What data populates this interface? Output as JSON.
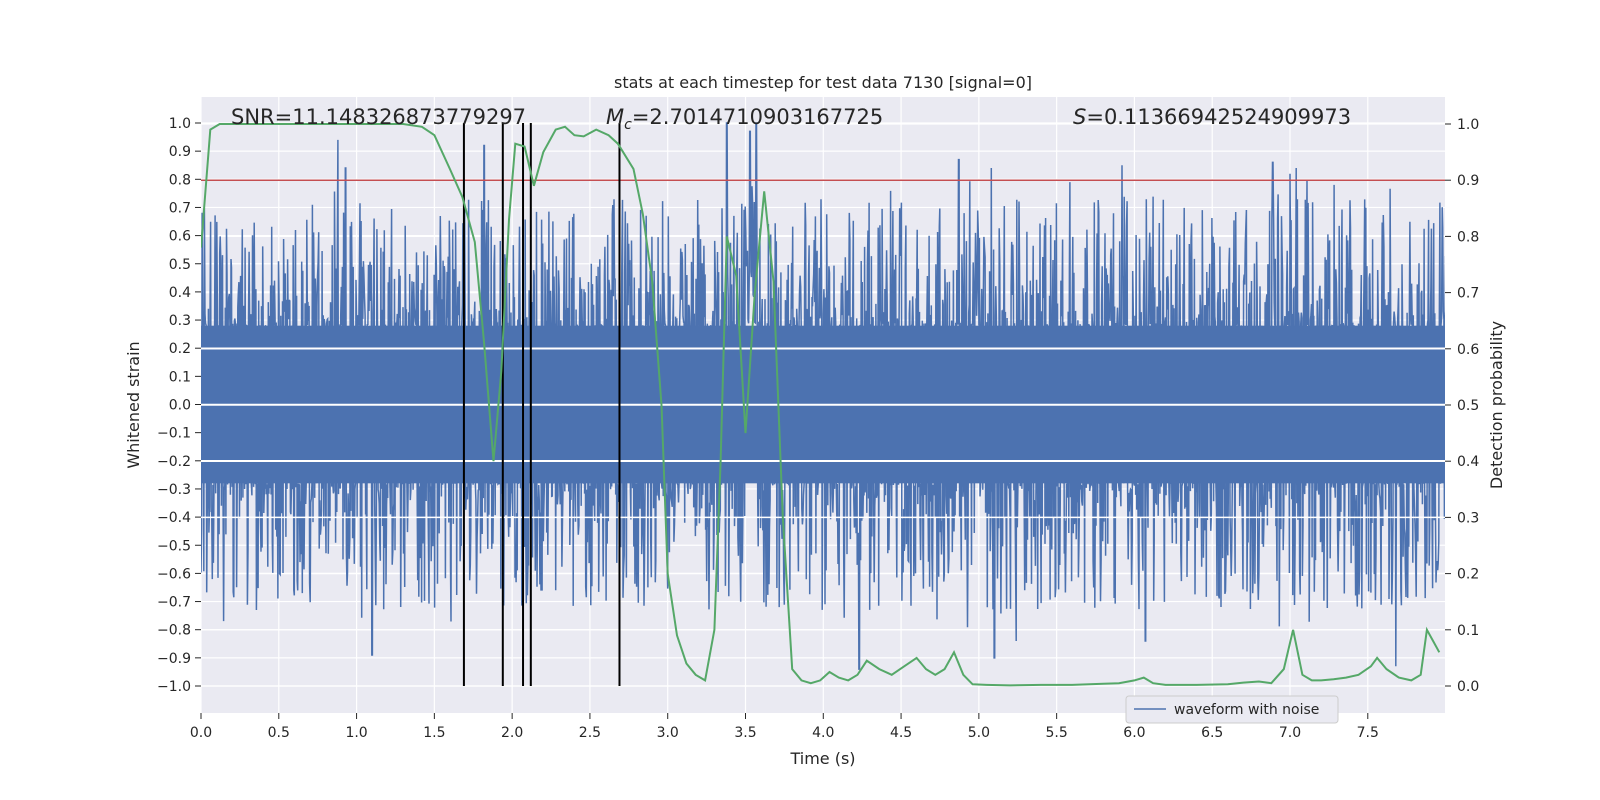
{
  "chart_data": {
    "type": "line",
    "title": "stats at each timestep for test data 7130 [signal=0]",
    "xlabel": "Time (s)",
    "ylabel": "Whitened strain",
    "y2label": "Detection probability",
    "xlim": [
      0,
      8
    ],
    "ylim": [
      -1.05,
      1.05
    ],
    "y2lim": [
      -0.045,
      1.045
    ],
    "x_ticks": [
      "0.0",
      "0.5",
      "1.0",
      "1.5",
      "2.0",
      "2.5",
      "3.0",
      "3.5",
      "4.0",
      "4.5",
      "5.0",
      "5.5",
      "6.0",
      "6.5",
      "7.0",
      "7.5"
    ],
    "y_ticks": [
      "1.0",
      "0.9",
      "0.8",
      "0.7",
      "0.6",
      "0.5",
      "0.4",
      "0.3",
      "0.2",
      "0.1",
      "0.0",
      "−0.1",
      "−0.2",
      "−0.3",
      "−0.4",
      "−0.5",
      "−0.6",
      "−0.7",
      "−0.8",
      "−0.9",
      "−1.0"
    ],
    "y2_ticks": [
      "1.0",
      "0.9",
      "0.8",
      "0.7",
      "0.6",
      "0.5",
      "0.4",
      "0.3",
      "0.2",
      "0.1",
      "0.0"
    ],
    "stats": {
      "snr_text": "SNR=11.148326873779297",
      "mc_symbol": "M",
      "mc_subscript": "c",
      "mc_value": "=2.7014710903167725",
      "s_symbol": "S",
      "s_value": "=0.11366942524909973"
    },
    "threshold": {
      "y2_value": 0.9,
      "color": "#c44e52"
    },
    "vertical_markers": [
      1.69,
      1.94,
      2.07,
      2.12,
      2.69
    ],
    "series": [
      {
        "name": "waveform with noise",
        "color": "#4c72b0",
        "kind": "dense noise, typical envelope ±0.45, peaks to ±1.0",
        "peaks_up": [
          [
            0.88,
            0.94
          ],
          [
            0.93,
            0.84
          ],
          [
            1.82,
            0.92
          ],
          [
            3.38,
            1.0
          ],
          [
            3.53,
            0.97
          ],
          [
            3.57,
            1.0
          ],
          [
            4.87,
            0.87
          ],
          [
            5.08,
            0.84
          ],
          [
            5.92,
            0.85
          ],
          [
            6.07,
            0.86
          ],
          [
            6.89,
            0.86
          ],
          [
            7.0,
            0.82
          ],
          [
            7.04,
            0.84
          ]
        ],
        "peaks_down": [
          [
            1.1,
            -0.89
          ],
          [
            4.23,
            -0.94
          ],
          [
            5.1,
            -0.9
          ],
          [
            5.24,
            -0.84
          ],
          [
            6.07,
            -0.84
          ],
          [
            7.68,
            -0.93
          ]
        ]
      },
      {
        "name": "detection probability",
        "color": "#55a868",
        "axis": "y2",
        "points": [
          [
            0.0,
            0.78
          ],
          [
            0.06,
            0.99
          ],
          [
            0.12,
            1.0
          ],
          [
            0.5,
            1.0
          ],
          [
            1.0,
            1.0
          ],
          [
            1.3,
            1.0
          ],
          [
            1.42,
            0.995
          ],
          [
            1.5,
            0.98
          ],
          [
            1.6,
            0.92
          ],
          [
            1.68,
            0.87
          ],
          [
            1.76,
            0.79
          ],
          [
            1.82,
            0.61
          ],
          [
            1.88,
            0.4
          ],
          [
            1.93,
            0.56
          ],
          [
            1.98,
            0.83
          ],
          [
            2.02,
            0.965
          ],
          [
            2.08,
            0.96
          ],
          [
            2.14,
            0.89
          ],
          [
            2.2,
            0.95
          ],
          [
            2.28,
            0.99
          ],
          [
            2.34,
            0.995
          ],
          [
            2.4,
            0.98
          ],
          [
            2.46,
            0.978
          ],
          [
            2.54,
            0.99
          ],
          [
            2.62,
            0.98
          ],
          [
            2.68,
            0.965
          ],
          [
            2.78,
            0.92
          ],
          [
            2.84,
            0.84
          ],
          [
            2.9,
            0.72
          ],
          [
            2.96,
            0.5
          ],
          [
            3.0,
            0.2
          ],
          [
            3.06,
            0.09
          ],
          [
            3.12,
            0.04
          ],
          [
            3.18,
            0.02
          ],
          [
            3.24,
            0.01
          ],
          [
            3.3,
            0.1
          ],
          [
            3.34,
            0.4
          ],
          [
            3.38,
            0.8
          ],
          [
            3.44,
            0.73
          ],
          [
            3.5,
            0.45
          ],
          [
            3.56,
            0.7
          ],
          [
            3.62,
            0.88
          ],
          [
            3.68,
            0.72
          ],
          [
            3.74,
            0.3
          ],
          [
            3.8,
            0.03
          ],
          [
            3.86,
            0.01
          ],
          [
            3.92,
            0.005
          ],
          [
            3.98,
            0.01
          ],
          [
            4.04,
            0.025
          ],
          [
            4.1,
            0.015
          ],
          [
            4.16,
            0.01
          ],
          [
            4.22,
            0.02
          ],
          [
            4.28,
            0.045
          ],
          [
            4.36,
            0.03
          ],
          [
            4.44,
            0.02
          ],
          [
            4.52,
            0.035
          ],
          [
            4.6,
            0.05
          ],
          [
            4.66,
            0.03
          ],
          [
            4.72,
            0.02
          ],
          [
            4.78,
            0.03
          ],
          [
            4.84,
            0.06
          ],
          [
            4.9,
            0.02
          ],
          [
            4.96,
            0.003
          ],
          [
            5.05,
            0.002
          ],
          [
            5.2,
            0.001
          ],
          [
            5.4,
            0.002
          ],
          [
            5.6,
            0.002
          ],
          [
            5.8,
            0.004
          ],
          [
            5.9,
            0.005
          ],
          [
            6.0,
            0.01
          ],
          [
            6.06,
            0.015
          ],
          [
            6.12,
            0.005
          ],
          [
            6.2,
            0.002
          ],
          [
            6.4,
            0.002
          ],
          [
            6.6,
            0.003
          ],
          [
            6.7,
            0.006
          ],
          [
            6.8,
            0.008
          ],
          [
            6.88,
            0.005
          ],
          [
            6.96,
            0.03
          ],
          [
            7.02,
            0.1
          ],
          [
            7.08,
            0.02
          ],
          [
            7.14,
            0.01
          ],
          [
            7.2,
            0.01
          ],
          [
            7.28,
            0.012
          ],
          [
            7.36,
            0.015
          ],
          [
            7.44,
            0.02
          ],
          [
            7.52,
            0.035
          ],
          [
            7.56,
            0.05
          ],
          [
            7.62,
            0.03
          ],
          [
            7.7,
            0.015
          ],
          [
            7.78,
            0.01
          ],
          [
            7.84,
            0.02
          ],
          [
            7.88,
            0.1
          ],
          [
            7.92,
            0.08
          ],
          [
            7.96,
            0.06
          ]
        ]
      }
    ],
    "legend": {
      "label": "waveform with noise",
      "position": "lower-right"
    },
    "grid": true
  }
}
